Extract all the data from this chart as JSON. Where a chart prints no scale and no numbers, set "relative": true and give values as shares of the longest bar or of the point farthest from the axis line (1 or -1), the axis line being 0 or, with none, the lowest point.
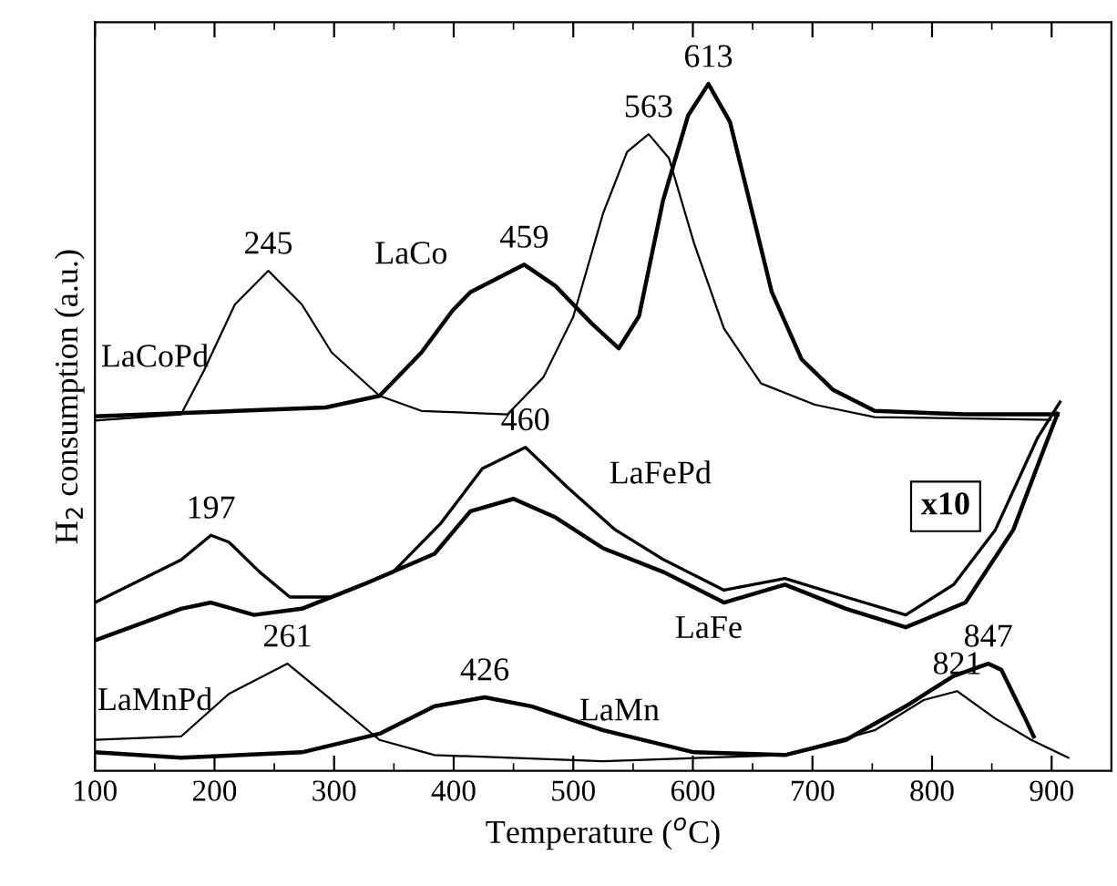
{
  "chart_data": {
    "type": "line",
    "relative": true,
    "xlabel": "Temperature ($^{o}$C)",
    "ylabel": "H$_{2}$ consumption (a.u.)",
    "xlim": [
      100,
      950
    ],
    "xticks": [
      100,
      200,
      300,
      400,
      500,
      600,
      700,
      800,
      900
    ],
    "tick_labels": "x",
    "grid": false,
    "legend": false,
    "marker": "none",
    "line_style": "solid",
    "series": [
      {
        "name": "LaCoPd",
        "color": "#000000",
        "x": [
          100,
          172,
          191,
          217,
          245,
          273,
          298,
          338,
          373,
          445,
          475,
          500,
          525,
          545,
          563,
          580,
          601,
          626,
          657,
          702,
          752,
          899
        ],
        "values": [
          0.51,
          0.519,
          0.582,
          0.679,
          0.728,
          0.679,
          0.609,
          0.546,
          0.524,
          0.519,
          0.573,
          0.661,
          0.812,
          0.901,
          0.927,
          0.892,
          0.768,
          0.644,
          0.564,
          0.533,
          0.515,
          0.511
        ]
      },
      {
        "name": "LaCo",
        "color": "#000000",
        "x": [
          100,
          293,
          338,
          373,
          399,
          414,
          459,
          485,
          515,
          538,
          555,
          575,
          596,
          613,
          631,
          646,
          666,
          691,
          717,
          752,
          828,
          905
        ],
        "values": [
          0.516,
          0.529,
          0.546,
          0.609,
          0.67,
          0.697,
          0.737,
          0.706,
          0.652,
          0.615,
          0.662,
          0.83,
          0.954,
          1.0,
          0.945,
          0.839,
          0.697,
          0.599,
          0.555,
          0.524,
          0.519,
          0.519
        ]
      },
      {
        "name": "LaFePd",
        "color": "#000000",
        "x": [
          100,
          172,
          197,
          212,
          238,
          263,
          298,
          349,
          389,
          424,
          460,
          495,
          535,
          576,
          626,
          677,
          728,
          778,
          818,
          853,
          888,
          907
        ],
        "values": [
          0.245,
          0.307,
          0.343,
          0.333,
          0.289,
          0.253,
          0.253,
          0.289,
          0.36,
          0.44,
          0.471,
          0.413,
          0.351,
          0.307,
          0.263,
          0.28,
          0.253,
          0.227,
          0.271,
          0.351,
          0.484,
          0.537
        ]
      },
      {
        "name": "LaFe",
        "color": "#000000",
        "x": [
          100,
          172,
          197,
          233,
          273,
          324,
          384,
          414,
          450,
          485,
          525,
          576,
          626,
          677,
          728,
          778,
          828,
          868,
          893,
          905
        ],
        "values": [
          0.19,
          0.236,
          0.245,
          0.227,
          0.236,
          0.271,
          0.316,
          0.378,
          0.396,
          0.369,
          0.324,
          0.289,
          0.245,
          0.271,
          0.236,
          0.209,
          0.245,
          0.351,
          0.466,
          0.52
        ]
      },
      {
        "name": "LaMnPd",
        "color": "#000000",
        "x": [
          100,
          172,
          212,
          261,
          298,
          338,
          384,
          525,
          677,
          752,
          793,
          821,
          853,
          883,
          914
        ],
        "values": [
          0.045,
          0.05,
          0.112,
          0.156,
          0.103,
          0.045,
          0.023,
          0.014,
          0.023,
          0.059,
          0.103,
          0.116,
          0.076,
          0.045,
          0.019
        ]
      },
      {
        "name": "LaMn",
        "color": "#000000",
        "x": [
          100,
          172,
          273,
          338,
          384,
          426,
          465,
          525,
          601,
          677,
          728,
          778,
          818,
          847,
          858,
          878,
          885
        ],
        "values": [
          0.027,
          0.019,
          0.027,
          0.054,
          0.094,
          0.107,
          0.094,
          0.059,
          0.027,
          0.023,
          0.045,
          0.094,
          0.138,
          0.156,
          0.147,
          0.076,
          0.05
        ]
      }
    ],
    "annotations": [
      {
        "text": "245",
        "x": 245,
        "y": 0.728
      },
      {
        "text": "459",
        "x": 459,
        "y": 0.737
      },
      {
        "text": "563",
        "x": 563,
        "y": 0.927
      },
      {
        "text": "613",
        "x": 613,
        "y": 1.0
      },
      {
        "text": "197",
        "x": 197,
        "y": 0.343
      },
      {
        "text": "460",
        "x": 460,
        "y": 0.471
      },
      {
        "text": "261",
        "x": 261,
        "y": 0.156
      },
      {
        "text": "426",
        "x": 426,
        "y": 0.107
      },
      {
        "text": "821",
        "x": 821,
        "y": 0.116
      },
      {
        "text": "847",
        "x": 847,
        "y": 0.156
      },
      "x10"
    ]
  }
}
